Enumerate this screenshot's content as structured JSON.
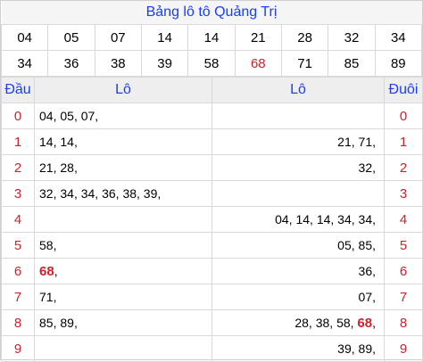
{
  "title": "Bảng lô tô Quảng Trị",
  "numbers_row1": [
    "04",
    "05",
    "07",
    "14",
    "14",
    "21",
    "28",
    "32",
    "34"
  ],
  "numbers_row2": [
    "34",
    "36",
    "38",
    "39",
    "58",
    "68",
    "71",
    "85",
    "89"
  ],
  "highlight_number": "68",
  "highlight_color": "#d0212c",
  "accent_color": "#1a3cff",
  "headers": {
    "dau": "Đầu",
    "lo_left": "Lô",
    "lo_right": "Lô",
    "duoi": "Đuôi"
  },
  "rows": [
    {
      "digit": "0",
      "left": [
        "04",
        "05",
        "07"
      ],
      "right": []
    },
    {
      "digit": "1",
      "left": [
        "14",
        "14"
      ],
      "right": [
        "21",
        "71"
      ]
    },
    {
      "digit": "2",
      "left": [
        "21",
        "28"
      ],
      "right": [
        "32"
      ]
    },
    {
      "digit": "3",
      "left": [
        "32",
        "34",
        "34",
        "36",
        "38",
        "39"
      ],
      "right": []
    },
    {
      "digit": "4",
      "left": [],
      "right": [
        "04",
        "14",
        "14",
        "34",
        "34"
      ]
    },
    {
      "digit": "5",
      "left": [
        "58"
      ],
      "right": [
        "05",
        "85"
      ]
    },
    {
      "digit": "6",
      "left": [
        "68"
      ],
      "right": [
        "36"
      ]
    },
    {
      "digit": "7",
      "left": [
        "71"
      ],
      "right": [
        "07"
      ]
    },
    {
      "digit": "8",
      "left": [
        "85",
        "89"
      ],
      "right": [
        "28",
        "38",
        "58",
        "68"
      ]
    },
    {
      "digit": "9",
      "left": [],
      "right": [
        "39",
        "89"
      ]
    }
  ]
}
